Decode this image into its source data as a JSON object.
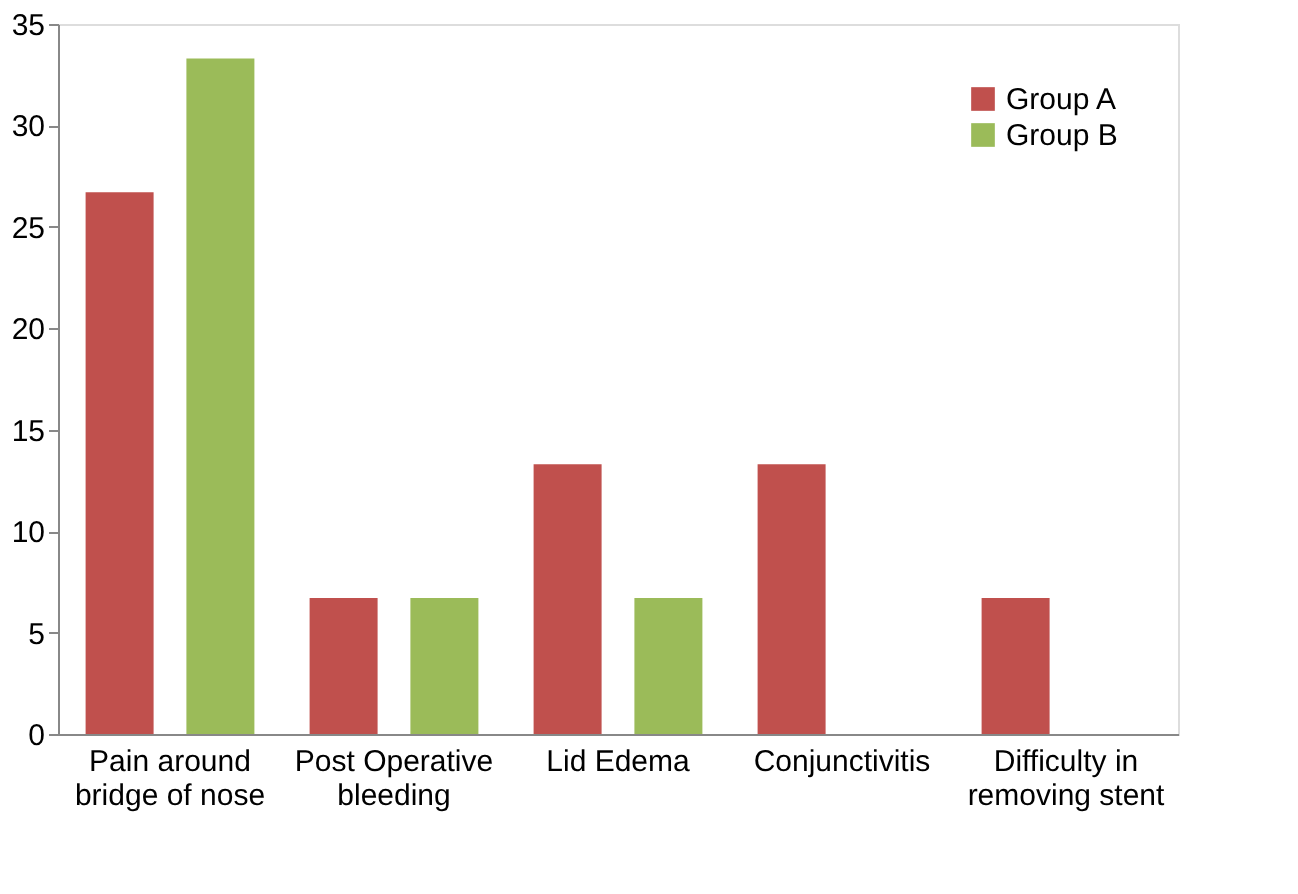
{
  "chart_data": {
    "type": "bar",
    "categories": [
      "Pain around\nbridge of nose",
      "Post Operative\nbleeding",
      "Lid Edema",
      "Conjunctivitis",
      "Difficulty in\nremoving stent"
    ],
    "series": [
      {
        "name": "Group A",
        "color": "#c0504d",
        "values": [
          26.7,
          6.7,
          13.3,
          13.3,
          6.7
        ]
      },
      {
        "name": "Group B",
        "color": "#9bbb59",
        "values": [
          33.3,
          6.7,
          6.7,
          0,
          0
        ]
      }
    ],
    "ylim": [
      0,
      35
    ],
    "yticks": [
      0,
      5,
      10,
      15,
      20,
      25,
      30,
      35
    ],
    "grid": false,
    "legend": "top right"
  }
}
